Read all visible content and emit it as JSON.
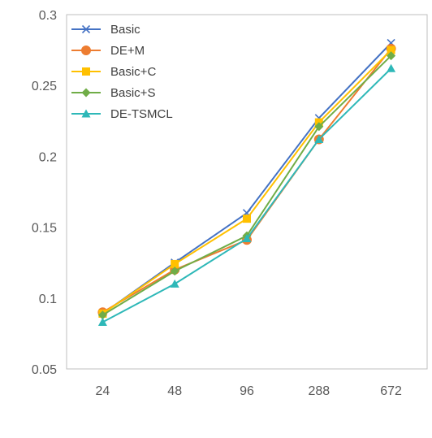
{
  "chart_data": {
    "type": "line",
    "title": "",
    "xlabel": "",
    "ylabel": "",
    "categories": [
      "24",
      "48",
      "96",
      "288",
      "672"
    ],
    "ylim": [
      0.05,
      0.3
    ],
    "yticks": [
      "0.05",
      "0.1",
      "0.15",
      "0.2",
      "0.25",
      "0.3"
    ],
    "grid": false,
    "legend_position": "top-left",
    "series": [
      {
        "name": "Basic",
        "color": "#4472C4",
        "marker": "x",
        "values": [
          0.089,
          0.125,
          0.16,
          0.227,
          0.28
        ]
      },
      {
        "name": "DE+M",
        "color": "#ED7D31",
        "marker": "circle",
        "values": [
          0.09,
          0.12,
          0.141,
          0.212,
          0.276
        ]
      },
      {
        "name": "Basic+C",
        "color": "#FFC000",
        "marker": "square",
        "values": [
          0.089,
          0.124,
          0.156,
          0.224,
          0.275
        ]
      },
      {
        "name": "Basic+S",
        "color": "#70AD47",
        "marker": "diamond",
        "values": [
          0.088,
          0.119,
          0.144,
          0.221,
          0.271
        ]
      },
      {
        "name": "DE-TSMCL",
        "color": "#2EB8B8",
        "marker": "triangle",
        "values": [
          0.083,
          0.11,
          0.142,
          0.212,
          0.262
        ]
      }
    ]
  }
}
